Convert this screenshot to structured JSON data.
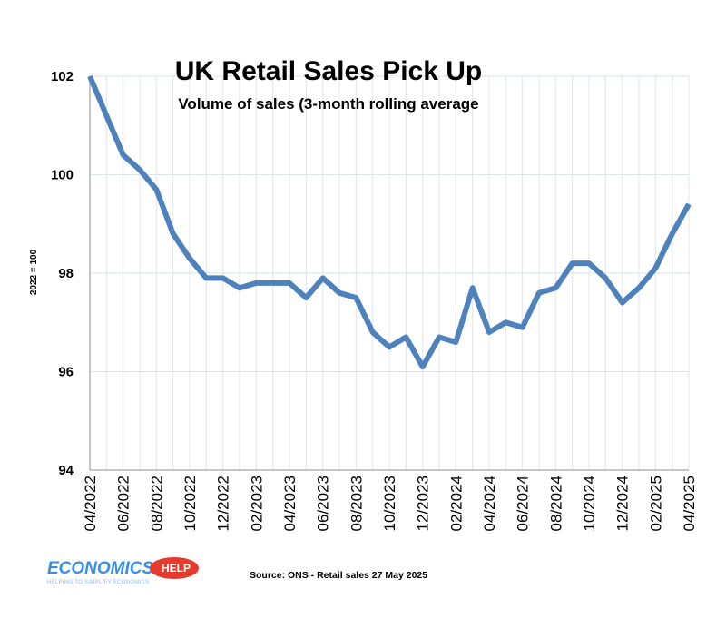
{
  "chart_data": {
    "type": "line",
    "title": "UK Retail Sales Pick Up",
    "subtitle": "Volume of sales (3-month rolling average",
    "ylabel": "2022 = 100",
    "xlabel": "",
    "ylim": [
      94,
      102
    ],
    "yticks": [
      94,
      96,
      98,
      100,
      102
    ],
    "grid": true,
    "legend": "none",
    "line_color": "#4f81bd",
    "x": [
      "04/2022",
      "05/2022",
      "06/2022",
      "07/2022",
      "08/2022",
      "09/2022",
      "10/2022",
      "11/2022",
      "12/2022",
      "01/2023",
      "02/2023",
      "03/2023",
      "04/2023",
      "05/2023",
      "06/2023",
      "07/2023",
      "08/2023",
      "09/2023",
      "10/2023",
      "11/2023",
      "12/2023",
      "01/2024",
      "02/2024",
      "03/2024",
      "04/2024",
      "05/2024",
      "06/2024",
      "07/2024",
      "08/2024",
      "09/2024",
      "10/2024",
      "11/2024",
      "12/2024",
      "01/2025",
      "02/2025",
      "03/2025",
      "04/2025"
    ],
    "xtick_labels": [
      "04/2022",
      "06/2022",
      "08/2022",
      "10/2022",
      "12/2022",
      "02/2023",
      "04/2023",
      "06/2023",
      "08/2023",
      "10/2023",
      "12/2023",
      "02/2024",
      "04/2024",
      "06/2024",
      "08/2024",
      "10/2024",
      "12/2024",
      "02/2025",
      "04/2025"
    ],
    "series": [
      {
        "values": [
          102.0,
          101.2,
          100.4,
          100.1,
          99.7,
          98.8,
          98.3,
          97.9,
          97.9,
          97.7,
          97.8,
          97.8,
          97.8,
          97.5,
          97.9,
          97.6,
          97.5,
          96.8,
          96.5,
          96.7,
          96.1,
          96.7,
          96.6,
          97.7,
          96.8,
          97.0,
          96.9,
          97.6,
          97.7,
          98.2,
          98.2,
          97.9,
          97.4,
          97.7,
          98.1,
          98.8,
          99.4
        ]
      }
    ]
  },
  "source": "Source: ONS - Retail sales 27 May 2025",
  "logo": {
    "main": "ECONOMICS",
    "help": "HELP",
    "tagline": "HELPING TO SIMPLIFY ECONOMICS"
  }
}
